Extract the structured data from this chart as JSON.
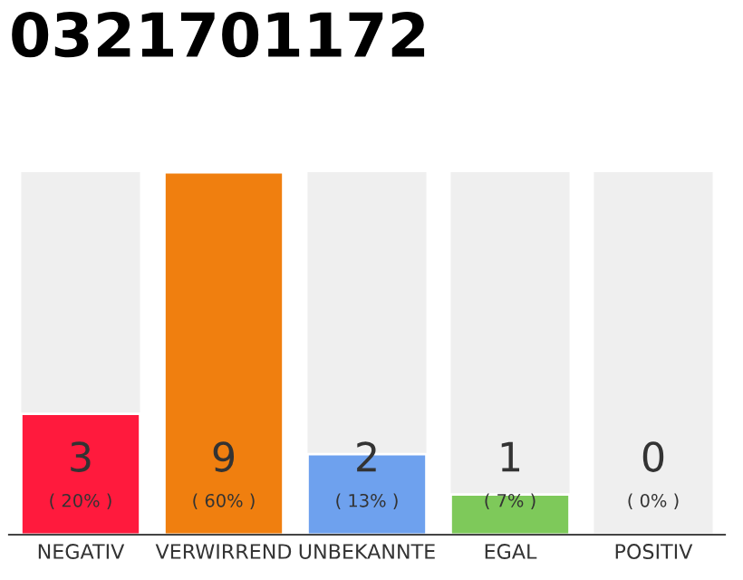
{
  "chart_data": {
    "type": "bar",
    "title": "0321701172",
    "categories": [
      "NEGATIV",
      "VERWIRREND",
      "UNBEKANNTE",
      "EGAL",
      "POSITIV"
    ],
    "values": [
      3,
      9,
      2,
      1,
      0
    ],
    "colors": [
      "#ff1a3d",
      "#f07f0f",
      "#6ea1ee",
      "#7ec95a",
      null
    ],
    "ylim": [
      0,
      9
    ],
    "tick_labels": "x",
    "grid": false,
    "legend": false,
    "value_labels": [
      "3\n( 20% )",
      "9\n( 60% )",
      "2\n( 13% )",
      "1\n( 7% )",
      "0\n( 0% )"
    ]
  }
}
